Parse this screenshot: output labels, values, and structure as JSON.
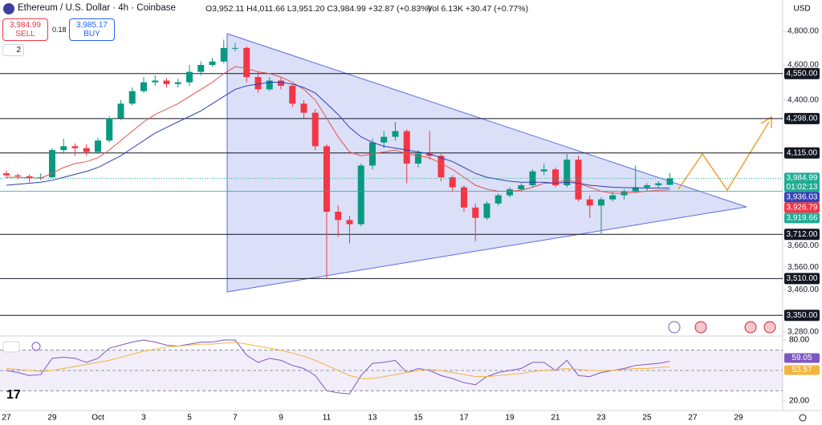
{
  "header": {
    "symbol": "Ethereum / U.S. Dollar · 4h · Coinbase",
    "ohlc": "O3,952.11 H4,011.66 L3,951.20 C3,984.99 +32.87 (+0.83%)",
    "volume": "Vol 6.13K +30.47 (+0.77%)",
    "sell_price": "3,984.99",
    "sell": "SELL",
    "spread": "0.18",
    "buy_price": "3,985.17",
    "buy": "BUY",
    "indicators_count": "2",
    "currency": "USD"
  },
  "chart_data": [
    {
      "type": "candlestick",
      "log": true,
      "up_color": "#089981",
      "down_color": "#f23645",
      "x": [
        0,
        0.5,
        1,
        1.5,
        2,
        2.5,
        3,
        3.5,
        4,
        4.5,
        5,
        5.5,
        6,
        6.5,
        7,
        7.5,
        8,
        8.5,
        9,
        9.5,
        10,
        10.5,
        11,
        11.5,
        12,
        12.5,
        13,
        13.5,
        14,
        14.5,
        15,
        15.5,
        16,
        16.5,
        17,
        17.5,
        18,
        18.5,
        19,
        19.5,
        20,
        20.5,
        21,
        21.5,
        22,
        22.5,
        23,
        23.5,
        24,
        24.5,
        25,
        25.5,
        26,
        26.5,
        27,
        27.5,
        28,
        28.5,
        29
      ],
      "candles": [
        [
          4010,
          4025,
          3985,
          4000
        ],
        [
          4000,
          4010,
          3980,
          3995
        ],
        [
          3995,
          4005,
          3965,
          3985
        ],
        [
          3985,
          4010,
          3975,
          3990
        ],
        [
          3990,
          4140,
          3985,
          4130
        ],
        [
          4130,
          4190,
          4110,
          4150
        ],
        [
          4150,
          4165,
          4100,
          4140
        ],
        [
          4140,
          4160,
          4100,
          4120
        ],
        [
          4120,
          4195,
          4110,
          4180
        ],
        [
          4180,
          4310,
          4170,
          4300
        ],
        [
          4300,
          4400,
          4290,
          4380
        ],
        [
          4380,
          4470,
          4370,
          4450
        ],
        [
          4450,
          4530,
          4440,
          4500
        ],
        [
          4500,
          4540,
          4480,
          4510
        ],
        [
          4510,
          4525,
          4470,
          4490
        ],
        [
          4490,
          4520,
          4470,
          4500
        ],
        [
          4500,
          4600,
          4480,
          4560
        ],
        [
          4560,
          4620,
          4540,
          4600
        ],
        [
          4600,
          4640,
          4590,
          4620
        ],
        [
          4620,
          4750,
          4610,
          4700
        ],
        [
          4700,
          4730,
          4680,
          4700
        ],
        [
          4700,
          4710,
          4500,
          4530
        ],
        [
          4530,
          4560,
          4440,
          4460
        ],
        [
          4460,
          4530,
          4450,
          4510
        ],
        [
          4510,
          4530,
          4460,
          4480
        ],
        [
          4480,
          4490,
          4360,
          4380
        ],
        [
          4380,
          4400,
          4300,
          4330
        ],
        [
          4330,
          4350,
          4130,
          4150
        ],
        [
          4150,
          4160,
          3510,
          3820
        ],
        [
          3820,
          3850,
          3700,
          3780
        ],
        [
          3780,
          3800,
          3670,
          3760
        ],
        [
          3760,
          4060,
          3750,
          4050
        ],
        [
          4050,
          4190,
          4030,
          4170
        ],
        [
          4170,
          4230,
          4140,
          4200
        ],
        [
          4200,
          4280,
          4180,
          4230
        ],
        [
          4230,
          4240,
          3960,
          4060
        ],
        [
          4060,
          4130,
          4040,
          4110
        ],
        [
          4110,
          4230,
          4080,
          4100
        ],
        [
          4100,
          4110,
          3970,
          3990
        ],
        [
          3990,
          4000,
          3920,
          3940
        ],
        [
          3940,
          3950,
          3820,
          3840
        ],
        [
          3840,
          3860,
          3680,
          3790
        ],
        [
          3790,
          3870,
          3780,
          3860
        ],
        [
          3860,
          3910,
          3850,
          3900
        ],
        [
          3900,
          3940,
          3890,
          3930
        ],
        [
          3930,
          3960,
          3920,
          3950
        ],
        [
          3950,
          4030,
          3940,
          4020
        ],
        [
          4020,
          4060,
          4000,
          4030
        ],
        [
          4030,
          4040,
          3940,
          3950
        ],
        [
          3950,
          4110,
          3940,
          4080
        ],
        [
          4080,
          4100,
          3870,
          3880
        ],
        [
          3880,
          3900,
          3790,
          3850
        ],
        [
          3850,
          3890,
          3710,
          3880
        ],
        [
          3880,
          3920,
          3870,
          3900
        ],
        [
          3900,
          3930,
          3880,
          3920
        ],
        [
          3920,
          4050,
          3910,
          3940
        ],
        [
          3940,
          3960,
          3920,
          3950
        ],
        [
          3950,
          3970,
          3935,
          3960
        ],
        [
          3952.11,
          4011.66,
          3951.2,
          3984.99
        ]
      ],
      "series": [
        {
          "color": "#e5534b",
          "values": [
            3990,
            3990,
            3988,
            3986,
            4010,
            4040,
            4060,
            4070,
            4090,
            4130,
            4180,
            4230,
            4280,
            4320,
            4350,
            4380,
            4420,
            4460,
            4500,
            4550,
            4590,
            4580,
            4560,
            4550,
            4530,
            4500,
            4460,
            4400,
            4300,
            4200,
            4120,
            4100,
            4110,
            4120,
            4130,
            4110,
            4100,
            4090,
            4060,
            4030,
            3990,
            3950,
            3930,
            3920,
            3920,
            3925,
            3940,
            3960,
            3960,
            3980,
            3960,
            3940,
            3920,
            3910,
            3910,
            3915,
            3920,
            3925,
            3927
          ]
        },
        {
          "color": "#2f3fb0",
          "values": [
            3950,
            3955,
            3960,
            3965,
            3975,
            3990,
            4005,
            4020,
            4040,
            4070,
            4100,
            4140,
            4180,
            4220,
            4250,
            4280,
            4310,
            4340,
            4380,
            4420,
            4460,
            4480,
            4490,
            4500,
            4500,
            4490,
            4470,
            4440,
            4380,
            4320,
            4250,
            4200,
            4170,
            4150,
            4140,
            4130,
            4120,
            4110,
            4090,
            4070,
            4040,
            4010,
            3990,
            3980,
            3970,
            3965,
            3965,
            3965,
            3960,
            3965,
            3960,
            3950,
            3945,
            3940,
            3938,
            3937,
            3936,
            3936,
            3936
          ]
        }
      ],
      "xlim": [
        -0.28,
        33.93
      ],
      "ylim": [
        3267,
        4884
      ],
      "xticks": [
        {
          "value": 0,
          "label": "27"
        },
        {
          "value": 2,
          "label": "29"
        },
        {
          "value": 4,
          "label": "Oct"
        },
        {
          "value": 6,
          "label": "3"
        },
        {
          "value": 8,
          "label": "5"
        },
        {
          "value": 10,
          "label": "7"
        },
        {
          "value": 12,
          "label": "9"
        },
        {
          "value": 14,
          "label": "11"
        },
        {
          "value": 16,
          "label": "13"
        },
        {
          "value": 18,
          "label": "15"
        },
        {
          "value": 20,
          "label": "17"
        },
        {
          "value": 22,
          "label": "19"
        },
        {
          "value": 24,
          "label": "21"
        },
        {
          "value": 26,
          "label": "23"
        },
        {
          "value": 28,
          "label": "25"
        },
        {
          "value": 30,
          "label": "27"
        },
        {
          "value": 32,
          "label": "29"
        }
      ],
      "yticks": [
        {
          "value": 4800,
          "label": "4,800.00"
        },
        {
          "value": 4600,
          "label": "4,600.00"
        },
        {
          "value": 4400,
          "label": "4,400.00"
        },
        {
          "value": 3660,
          "label": "3,660.00"
        },
        {
          "value": 3560,
          "label": "3,560.00"
        },
        {
          "value": 3460,
          "label": "3,460.00"
        },
        {
          "value": 3280,
          "label": "3,280.00"
        }
      ],
      "levels": [
        {
          "value": 4550,
          "label": "4,550.00"
        },
        {
          "value": 4298,
          "label": "4,298.00"
        },
        {
          "value": 4115,
          "label": "4,115.00"
        },
        {
          "value": 3712,
          "label": "3,712.00"
        },
        {
          "value": 3510,
          "label": "3,510.00"
        },
        {
          "value": 3350,
          "label": "3,350.00"
        }
      ],
      "price_labels": [
        {
          "value": 3984.99,
          "label": "3,984.99",
          "color": "#22ab94"
        },
        {
          "value": 3936.03,
          "label": "3,936.03",
          "color": "#3342b5"
        },
        {
          "value": 3926.79,
          "label": "3,926.79",
          "color": "#f23645"
        },
        {
          "value": 3919.66,
          "label": "3,919.66",
          "color": "#22ab94"
        }
      ],
      "countdown": "01:02:13"
    },
    {
      "type": "line",
      "ylim": [
        10.5,
        83.2
      ],
      "band": [
        30,
        70
      ],
      "midline": 50,
      "yticks": [
        {
          "value": 80,
          "label": "80.00"
        },
        {
          "value": 20,
          "label": "20.00"
        }
      ],
      "series": [
        {
          "color": "#7e57c2",
          "values": [
            50,
            48,
            45,
            46,
            62,
            63,
            62,
            58,
            62,
            72,
            75,
            78,
            80,
            78,
            75,
            74,
            76,
            78,
            78,
            80,
            80,
            65,
            58,
            62,
            60,
            55,
            52,
            45,
            30,
            28,
            27,
            45,
            57,
            58,
            60,
            48,
            52,
            50,
            45,
            42,
            38,
            36,
            44,
            48,
            50,
            52,
            58,
            58,
            50,
            60,
            45,
            44,
            48,
            50,
            52,
            55,
            56,
            57,
            59.05
          ]
        },
        {
          "color": "#f2b43c",
          "values": [
            52,
            51,
            50,
            49,
            50,
            52,
            54,
            56,
            58,
            60,
            63,
            66,
            69,
            71,
            73,
            74,
            75,
            76,
            76,
            77,
            78,
            76,
            74,
            72,
            70,
            67,
            64,
            60,
            55,
            50,
            45,
            42,
            42,
            44,
            46,
            48,
            50,
            51,
            50,
            48,
            46,
            44,
            44,
            45,
            46,
            47,
            49,
            50,
            51,
            52,
            51,
            50,
            50,
            50,
            51,
            52,
            52,
            53,
            53.57
          ]
        }
      ],
      "value_labels": [
        {
          "value": 59.05,
          "label": "59.05",
          "color": "#7e57c2"
        },
        {
          "value": 53.57,
          "label": "53.57",
          "color": "#f2b43c"
        }
      ]
    }
  ]
}
